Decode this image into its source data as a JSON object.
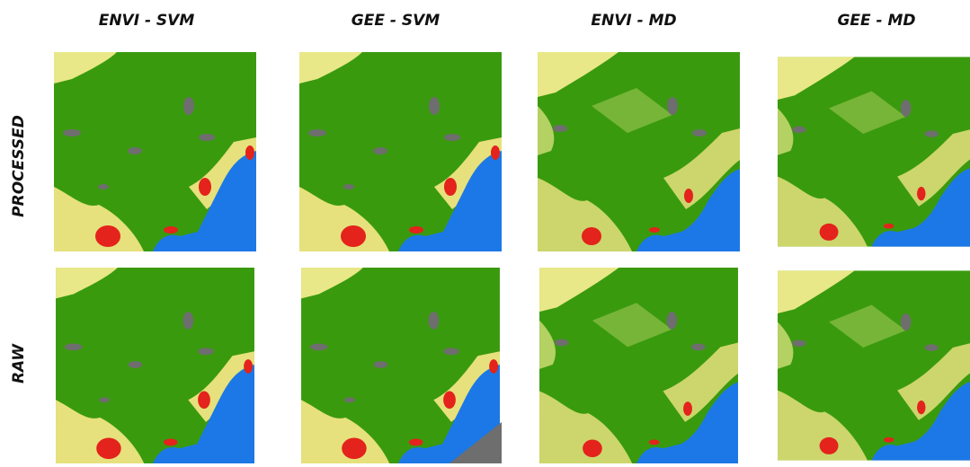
{
  "columns": [
    "ENVI - SVM",
    "GEE - SVM",
    "ENVI - MD",
    "GEE - MD"
  ],
  "rows": [
    "PROCESSED",
    "RAW"
  ]
}
